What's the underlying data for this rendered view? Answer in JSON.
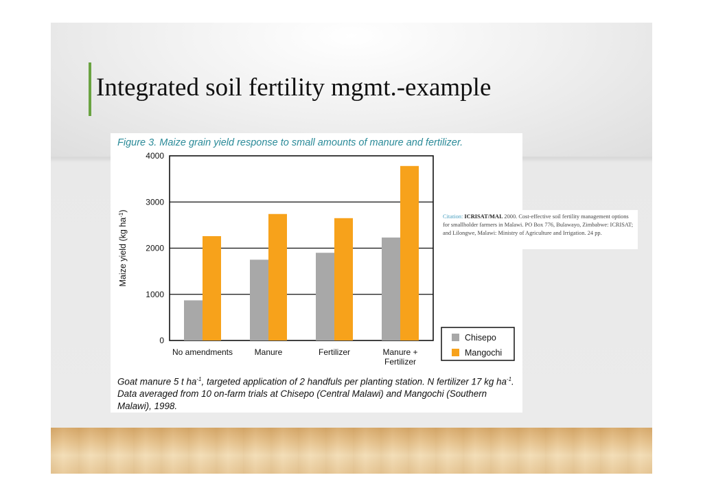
{
  "slide": {
    "title": "Integrated soil fertility mgmt.-example",
    "accent_color": "#6aa341"
  },
  "figure": {
    "caption": "Figure 3. Maize grain yield response to small amounts of manure and fertilizer.",
    "note_parts": [
      "Goat manure 5 t ha",
      "-1",
      ", targeted application of 2 handfuls per planting station. N fertilizer 17 kg ha",
      "-1",
      ". Data averaged from 10 on-farm trials at Chisepo (Central Malawi) and Mangochi (Southern Malawi), 1998."
    ]
  },
  "citation": {
    "label": "Citation:",
    "org": "ICRISAT/MAI.",
    "text": " 2000. Cost-effective soil fertility management options for smallholder farmers in Malawi. PO Box 776, Bulawayo, Zimbabwe: ICRISAT; and Lilongwe, Malawi: Ministry of Agriculture and Irrigation. 24 pp."
  },
  "chart_data": {
    "type": "bar",
    "categories": [
      [
        "No amendments"
      ],
      [
        "Manure"
      ],
      [
        "Fertilizer"
      ],
      [
        "Manure +",
        "Fertilizer"
      ]
    ],
    "series": [
      {
        "name": "Chisepo",
        "color": "#a8a8a8",
        "values": [
          870,
          1750,
          1900,
          2230
        ]
      },
      {
        "name": "Mangochi",
        "color": "#f7a21b",
        "values": [
          2260,
          2740,
          2650,
          3780
        ]
      }
    ],
    "ylabel_main": "Maize yield (kg ha",
    "ylabel_sup": "-1",
    "ylabel_end": ")",
    "yticks": [
      "0",
      "1000",
      "2000",
      "3000",
      "4000"
    ],
    "ylim": [
      0,
      4000
    ],
    "grid": true,
    "legend_placement": "bottom-right"
  }
}
